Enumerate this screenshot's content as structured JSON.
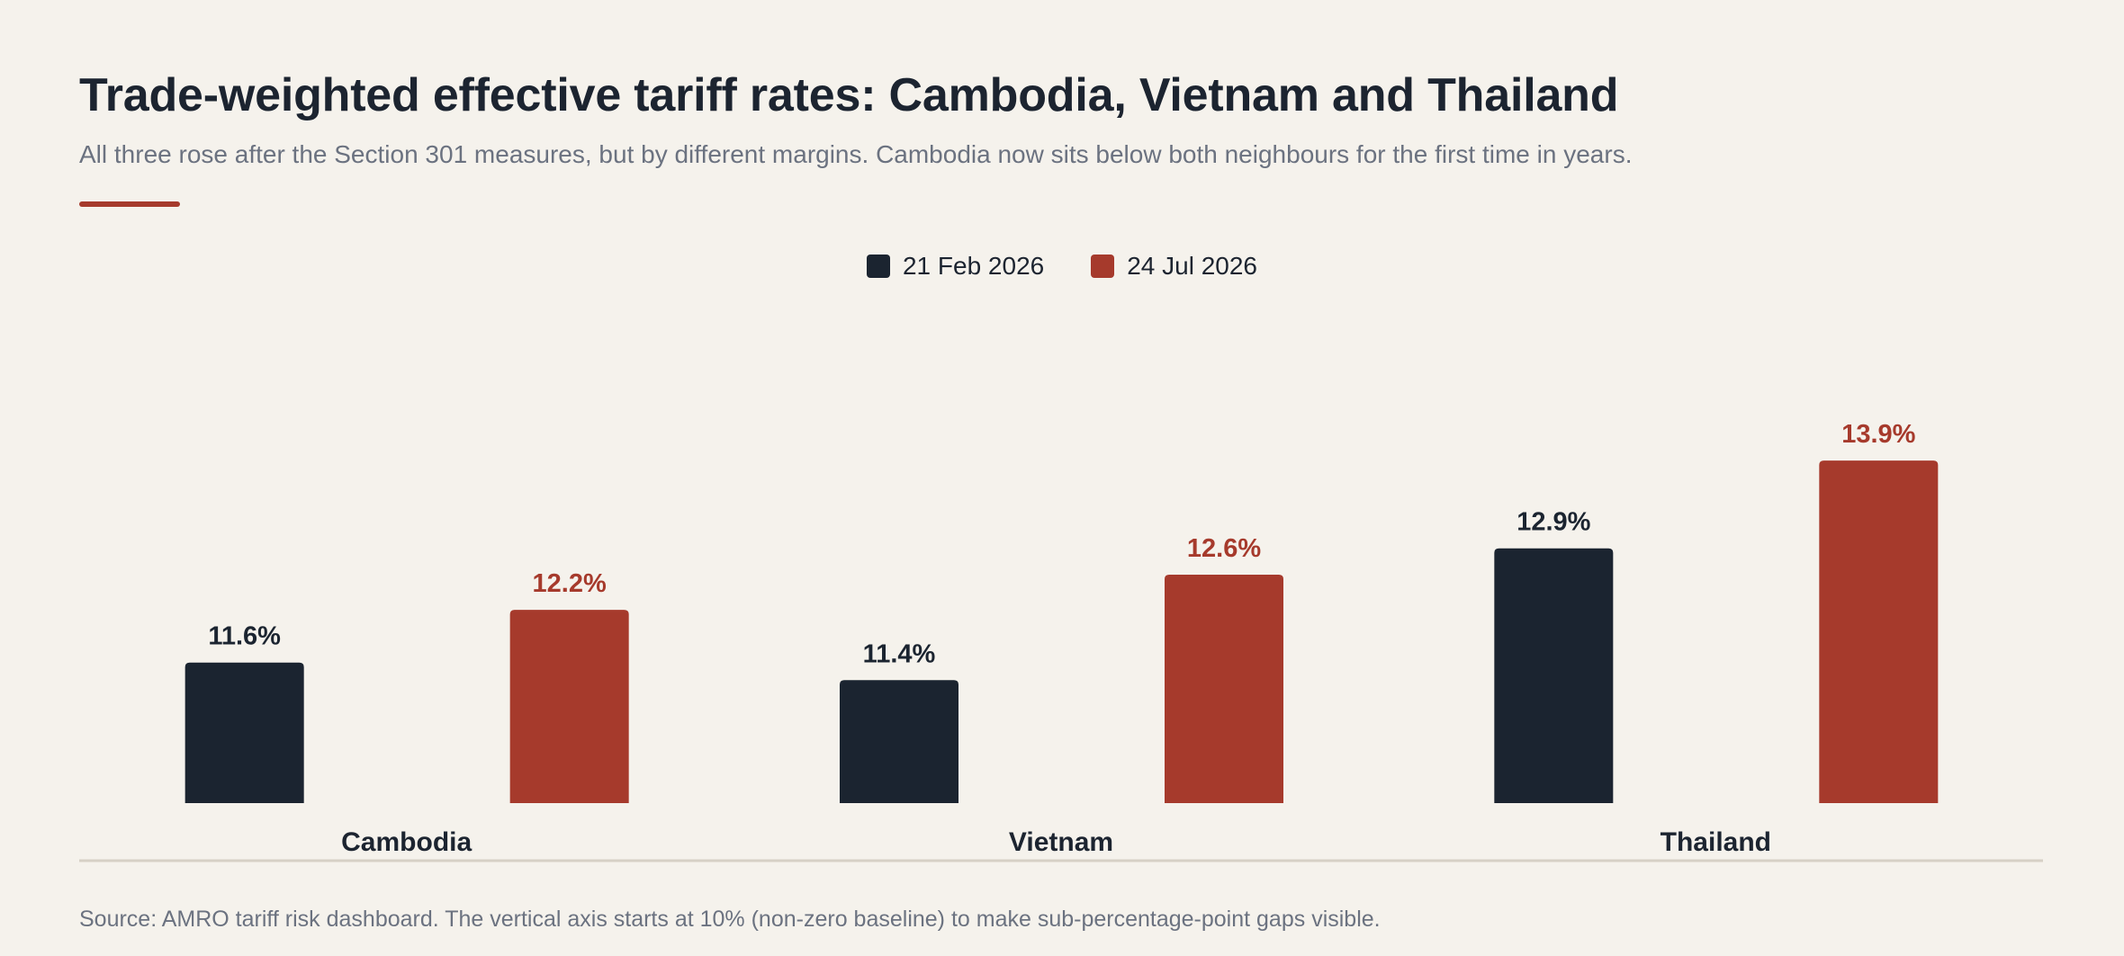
{
  "header": {
    "title": "Trade-weighted effective tariff rates: Cambodia, Vietnam and Thailand",
    "subtitle": "All three rose after the Section 301 measures, but by different margins. Cambodia now sits below both neighbours for the first time in years."
  },
  "colors": {
    "accent": "#a63a2c",
    "series_dark": "#1b2430",
    "series_red": "#a63a2c",
    "baseline": "#d6d0c6"
  },
  "chart_data": {
    "type": "bar",
    "categories": [
      "Cambodia",
      "Vietnam",
      "Thailand"
    ],
    "series": [
      {
        "name": "21 Feb 2026",
        "values": [
          11.6,
          11.4,
          12.9
        ],
        "labels": [
          "11.6%",
          "11.4%",
          "12.9%"
        ],
        "color": "#1b2430"
      },
      {
        "name": "24 Jul 2026",
        "values": [
          12.2,
          12.6,
          13.9
        ],
        "labels": [
          "12.2%",
          "12.6%",
          "13.9%"
        ],
        "color": "#a63a2c"
      }
    ],
    "ylim": [
      10,
      14.3
    ],
    "grid": false,
    "legend": "top-center",
    "xlabel": "",
    "ylabel": ""
  },
  "footer": {
    "source": "Source: AMRO tariff risk dashboard. The vertical axis starts at 10% (non-zero baseline) to make sub-percentage-point gaps visible."
  }
}
